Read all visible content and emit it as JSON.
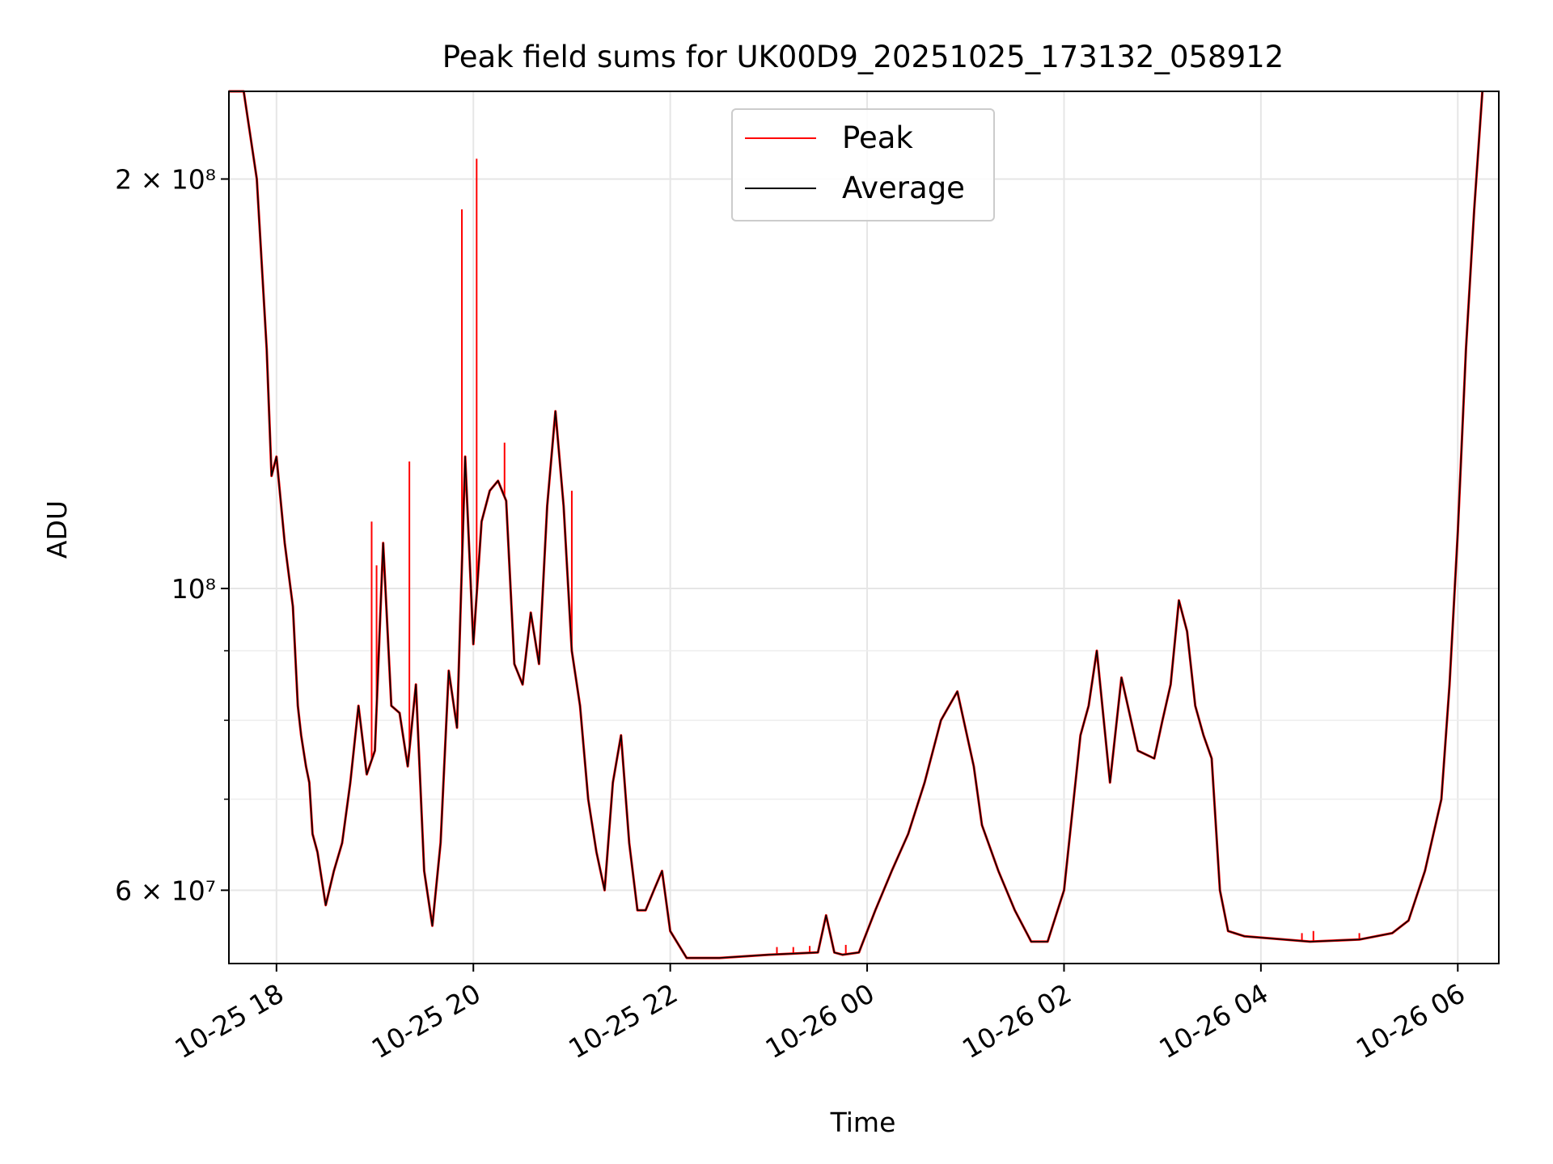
{
  "chart_data": {
    "type": "line",
    "title": "Peak field sums for UK00D9_20251025_173132_058912",
    "xlabel": "Time",
    "ylabel": "ADU",
    "y_scale": "log",
    "xlim": [
      "2025-10-25 17:31",
      "2025-10-26 06:25"
    ],
    "ylim": [
      53000000,
      232000000
    ],
    "x_ticks": [
      {
        "value": "2025-10-25 18:00",
        "label": "10-25 18"
      },
      {
        "value": "2025-10-25 20:00",
        "label": "10-25 20"
      },
      {
        "value": "2025-10-25 22:00",
        "label": "10-25 22"
      },
      {
        "value": "2025-10-26 00:00",
        "label": "10-26 00"
      },
      {
        "value": "2025-10-26 02:00",
        "label": "10-26 02"
      },
      {
        "value": "2025-10-26 04:00",
        "label": "10-26 04"
      },
      {
        "value": "2025-10-26 06:00",
        "label": "10-26 06"
      }
    ],
    "y_ticks": [
      {
        "value": 60000000,
        "label": "6 × 10⁷"
      },
      {
        "value": 100000000,
        "label": "10⁸"
      },
      {
        "value": 200000000,
        "label": "2 × 10⁸"
      }
    ],
    "y_minor_ticks": [
      70000000,
      80000000,
      90000000
    ],
    "grid": true,
    "legend": {
      "position": "top-center",
      "entries": [
        "Peak",
        "Average"
      ]
    },
    "colors": {
      "Peak": "#ff0000",
      "Average": "#000000"
    },
    "series": [
      {
        "name": "Average",
        "x": [
          "2025-10-25 17:31",
          "2025-10-25 17:40",
          "2025-10-25 17:48",
          "2025-10-25 17:54",
          "2025-10-25 17:57",
          "2025-10-25 18:00",
          "2025-10-25 18:05",
          "2025-10-25 18:10",
          "2025-10-25 18:13",
          "2025-10-25 18:15",
          "2025-10-25 18:18",
          "2025-10-25 18:20",
          "2025-10-25 18:22",
          "2025-10-25 18:25",
          "2025-10-25 18:30",
          "2025-10-25 18:35",
          "2025-10-25 18:40",
          "2025-10-25 18:45",
          "2025-10-25 18:50",
          "2025-10-25 18:55",
          "2025-10-25 19:00",
          "2025-10-25 19:05",
          "2025-10-25 19:10",
          "2025-10-25 19:15",
          "2025-10-25 19:20",
          "2025-10-25 19:25",
          "2025-10-25 19:30",
          "2025-10-25 19:35",
          "2025-10-25 19:40",
          "2025-10-25 19:45",
          "2025-10-25 19:50",
          "2025-10-25 19:55",
          "2025-10-25 20:00",
          "2025-10-25 20:05",
          "2025-10-25 20:10",
          "2025-10-25 20:15",
          "2025-10-25 20:20",
          "2025-10-25 20:25",
          "2025-10-25 20:30",
          "2025-10-25 20:35",
          "2025-10-25 20:40",
          "2025-10-25 20:45",
          "2025-10-25 20:50",
          "2025-10-25 20:55",
          "2025-10-25 21:00",
          "2025-10-25 21:05",
          "2025-10-25 21:10",
          "2025-10-25 21:15",
          "2025-10-25 21:20",
          "2025-10-25 21:25",
          "2025-10-25 21:30",
          "2025-10-25 21:35",
          "2025-10-25 21:40",
          "2025-10-25 21:45",
          "2025-10-25 21:50",
          "2025-10-25 21:55",
          "2025-10-25 22:00",
          "2025-10-25 22:10",
          "2025-10-25 22:20",
          "2025-10-25 22:30",
          "2025-10-25 23:00",
          "2025-10-25 23:30",
          "2025-10-25 23:35",
          "2025-10-25 23:40",
          "2025-10-25 23:45",
          "2025-10-25 23:55",
          "2025-10-26 00:05",
          "2025-10-26 00:15",
          "2025-10-26 00:25",
          "2025-10-26 00:35",
          "2025-10-26 00:45",
          "2025-10-26 00:55",
          "2025-10-26 01:05",
          "2025-10-26 01:10",
          "2025-10-26 01:20",
          "2025-10-26 01:30",
          "2025-10-26 01:40",
          "2025-10-26 01:50",
          "2025-10-26 02:00",
          "2025-10-26 02:10",
          "2025-10-26 02:15",
          "2025-10-26 02:20",
          "2025-10-26 02:28",
          "2025-10-26 02:35",
          "2025-10-26 02:45",
          "2025-10-26 02:55",
          "2025-10-26 03:00",
          "2025-10-26 03:05",
          "2025-10-26 03:10",
          "2025-10-26 03:15",
          "2025-10-26 03:20",
          "2025-10-26 03:25",
          "2025-10-26 03:30",
          "2025-10-26 03:35",
          "2025-10-26 03:40",
          "2025-10-26 03:50",
          "2025-10-26 04:30",
          "2025-10-26 05:00",
          "2025-10-26 05:20",
          "2025-10-26 05:30",
          "2025-10-26 05:40",
          "2025-10-26 05:50",
          "2025-10-26 05:55",
          "2025-10-26 06:00",
          "2025-10-26 06:05",
          "2025-10-26 06:10",
          "2025-10-26 06:15"
        ],
        "values": [
          232000000,
          232000000,
          200000000,
          150000000,
          121000000,
          125000000,
          108000000,
          97000000,
          82000000,
          78000000,
          74000000,
          72000000,
          66000000,
          64000000,
          58500000,
          62000000,
          65000000,
          72000000,
          82000000,
          73000000,
          76000000,
          108000000,
          82000000,
          81000000,
          74000000,
          85000000,
          62000000,
          56500000,
          65000000,
          87000000,
          79000000,
          125000000,
          91000000,
          112000000,
          118000000,
          120000000,
          116000000,
          88000000,
          85000000,
          96000000,
          88000000,
          115000000,
          135000000,
          115000000,
          90000000,
          82000000,
          70000000,
          64000000,
          60000000,
          72000000,
          78000000,
          65000000,
          58000000,
          58000000,
          60000000,
          62000000,
          56000000,
          53500000,
          53500000,
          53500000,
          53800000,
          54000000,
          57500000,
          54000000,
          53800000,
          54000000,
          58000000,
          62000000,
          66000000,
          72000000,
          80000000,
          84000000,
          74000000,
          67000000,
          62000000,
          58000000,
          55000000,
          55000000,
          60000000,
          78000000,
          82000000,
          90000000,
          72000000,
          86000000,
          76000000,
          75000000,
          80000000,
          85000000,
          98000000,
          93000000,
          82000000,
          78000000,
          75000000,
          60000000,
          56000000,
          55500000,
          55000000,
          55200000,
          55800000,
          57000000,
          62000000,
          70000000,
          85000000,
          110000000,
          150000000,
          190000000,
          232000000
        ]
      },
      {
        "name": "Peak",
        "spikes": [
          {
            "x": "2025-10-25 18:58",
            "value": 112000000
          },
          {
            "x": "2025-10-25 19:01",
            "value": 104000000
          },
          {
            "x": "2025-10-25 19:21",
            "value": 124000000
          },
          {
            "x": "2025-10-25 19:53",
            "value": 190000000
          },
          {
            "x": "2025-10-25 20:02",
            "value": 207000000
          },
          {
            "x": "2025-10-25 20:19",
            "value": 128000000
          },
          {
            "x": "2025-10-25 20:50",
            "value": 135000000
          },
          {
            "x": "2025-10-25 21:00",
            "value": 118000000
          },
          {
            "x": "2025-10-25 23:05",
            "value": 54500000
          },
          {
            "x": "2025-10-25 23:15",
            "value": 54500000
          },
          {
            "x": "2025-10-25 23:25",
            "value": 54600000
          },
          {
            "x": "2025-10-25 23:47",
            "value": 54700000
          },
          {
            "x": "2025-10-26 04:25",
            "value": 55800000
          },
          {
            "x": "2025-10-26 04:32",
            "value": 56000000
          },
          {
            "x": "2025-10-26 05:00",
            "value": 55800000
          }
        ]
      }
    ]
  }
}
